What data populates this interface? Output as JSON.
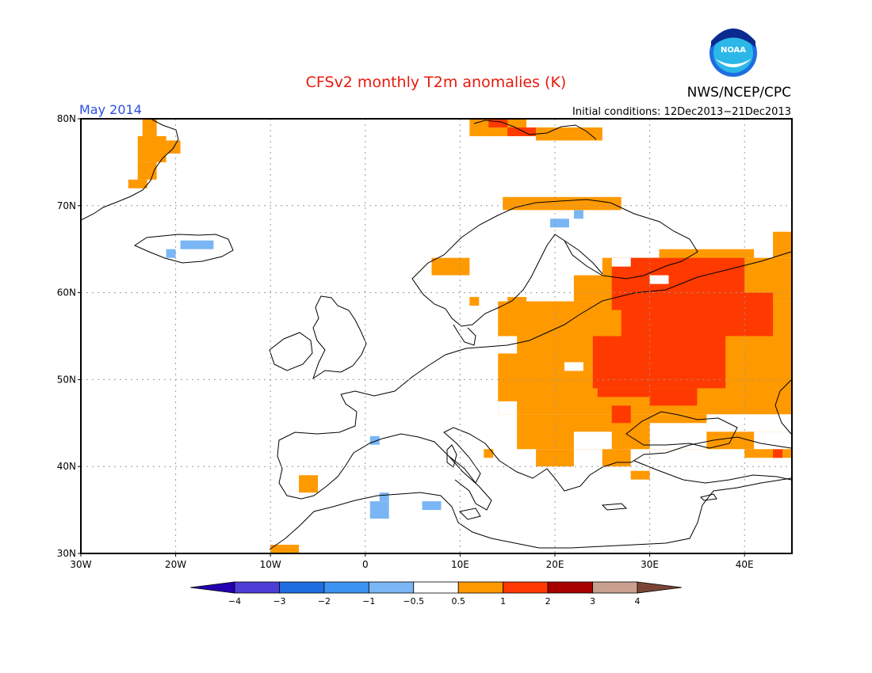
{
  "title": "CFSv2 monthly T2m anomalies (K)",
  "month": "May 2014",
  "agency": "NWS/NCEP/CPC",
  "logo_text": "NOAA",
  "initial_conditions": "Initial conditions: 12Dec2013−21Dec2013",
  "colors": {
    "title": "#e8190c",
    "month": "#2b4fe0",
    "frame": "#000000",
    "grid": "#999999",
    "coast": "#000000"
  },
  "x_axis": {
    "range_deg": [
      -30,
      45
    ],
    "ticks": [
      {
        "deg": -30,
        "label": "30W"
      },
      {
        "deg": -20,
        "label": "20W"
      },
      {
        "deg": -10,
        "label": "10W"
      },
      {
        "deg": 0,
        "label": "0"
      },
      {
        "deg": 10,
        "label": "10E"
      },
      {
        "deg": 20,
        "label": "20E"
      },
      {
        "deg": 30,
        "label": "30E"
      },
      {
        "deg": 40,
        "label": "40E"
      }
    ]
  },
  "y_axis": {
    "range_deg": [
      30,
      80
    ],
    "ticks": [
      {
        "deg": 80,
        "label": "80N"
      },
      {
        "deg": 70,
        "label": "70N"
      },
      {
        "deg": 60,
        "label": "60N"
      },
      {
        "deg": 50,
        "label": "50N"
      },
      {
        "deg": 40,
        "label": "40N"
      },
      {
        "deg": 30,
        "label": "30N"
      }
    ]
  },
  "colorbar": {
    "bins": [
      "#2400b0",
      "#4d3fd6",
      "#1f6ee0",
      "#3d94f0",
      "#7ab6f5",
      "#ffffff",
      "#ff9900",
      "#ff3a00",
      "#a80000",
      "#c9a090",
      "#7a4535"
    ],
    "labels": [
      "−4",
      "−3",
      "−2",
      "−1",
      "−0.5",
      "0.5",
      "1",
      "2",
      "3",
      "4"
    ]
  },
  "anomaly_cells": [
    {
      "lon": [
        -23.5,
        -22
      ],
      "lat": [
        78,
        80
      ],
      "color": "#ff9900"
    },
    {
      "lon": [
        -24,
        -21
      ],
      "lat": [
        75,
        78
      ],
      "color": "#ff9900"
    },
    {
      "lon": [
        -24,
        -22
      ],
      "lat": [
        73,
        75
      ],
      "color": "#ff9900"
    },
    {
      "lon": [
        -22,
        -19.5
      ],
      "lat": [
        76,
        77.5
      ],
      "color": "#ff9900"
    },
    {
      "lon": [
        -25,
        -23
      ],
      "lat": [
        72,
        73
      ],
      "color": "#ff9900"
    },
    {
      "lon": [
        -19.5,
        -16
      ],
      "lat": [
        65,
        66
      ],
      "color": "#7ab6f5"
    },
    {
      "lon": [
        -21,
        -20
      ],
      "lat": [
        64,
        65
      ],
      "color": "#7ab6f5"
    },
    {
      "lon": [
        19.5,
        21.5
      ],
      "lat": [
        67.5,
        68.5
      ],
      "color": "#7ab6f5"
    },
    {
      "lon": [
        22,
        23
      ],
      "lat": [
        68.5,
        69.5
      ],
      "color": "#7ab6f5"
    },
    {
      "lon": 0.5,
      "lon2": 1.5,
      "lat": [
        42.5,
        43.5
      ],
      "color": "#7ab6f5"
    },
    {
      "lon": [
        0.5,
        2.5
      ],
      "lat": [
        34,
        36
      ],
      "color": "#7ab6f5"
    },
    {
      "lon": [
        1.5,
        2.5
      ],
      "lat": [
        36,
        37
      ],
      "color": "#7ab6f5"
    },
    {
      "lon": [
        6,
        8
      ],
      "lat": [
        35,
        36
      ],
      "color": "#7ab6f5"
    },
    {
      "lon": [
        11,
        17
      ],
      "lat": [
        78,
        80
      ],
      "color": "#ff9900"
    },
    {
      "lon": [
        13,
        15
      ],
      "lat": [
        79,
        80
      ],
      "color": "#ff3a00"
    },
    {
      "lon": [
        15,
        18
      ],
      "lat": [
        78,
        79
      ],
      "color": "#ff3a00"
    },
    {
      "lon": [
        18,
        25
      ],
      "lat": [
        77.5,
        79
      ],
      "color": "#ff9900"
    },
    {
      "lon": [
        14.5,
        27
      ],
      "lat": [
        69.5,
        71
      ],
      "color": "#ff9900"
    },
    {
      "lon": [
        7,
        11
      ],
      "lat": [
        62,
        64
      ],
      "color": "#ff9900"
    },
    {
      "lon": [
        11,
        12
      ],
      "lat": [
        58.5,
        59.5
      ],
      "color": "#ff9900"
    },
    {
      "lon": [
        15,
        17
      ],
      "lat": [
        58.5,
        59.5
      ],
      "color": "#ff9900"
    },
    {
      "lon": [
        14.5,
        15
      ],
      "lat": [
        57.5,
        58.5
      ],
      "color": "#ff9900"
    },
    {
      "lon": [
        22,
        27
      ],
      "lat": [
        59,
        62
      ],
      "color": "#ff9900"
    },
    {
      "lon": [
        25,
        45
      ],
      "lat": [
        59,
        64
      ],
      "color": "#ff9900"
    },
    {
      "lon": [
        31,
        41
      ],
      "lat": [
        64,
        65
      ],
      "color": "#ff9900"
    },
    {
      "lon": [
        43,
        45
      ],
      "lat": [
        64,
        67
      ],
      "color": "#ff9900"
    },
    {
      "lon": [
        14,
        45
      ],
      "lat": [
        46,
        59
      ],
      "color": "#ff9900"
    },
    {
      "lon": [
        16,
        45
      ],
      "lat": [
        42,
        46
      ],
      "color": "#ff9900"
    },
    {
      "lon": [
        18,
        22
      ],
      "lat": [
        40,
        42
      ],
      "color": "#ff9900"
    },
    {
      "lon": [
        25,
        28
      ],
      "lat": [
        40,
        42
      ],
      "color": "#ff9900"
    },
    {
      "lon": [
        12.5,
        13.5
      ],
      "lat": [
        41,
        42
      ],
      "color": "#ff9900"
    },
    {
      "lon": [
        28,
        30
      ],
      "lat": [
        38.5,
        39.5
      ],
      "color": "#ff9900"
    },
    {
      "lon": [
        37,
        40
      ],
      "lat": [
        43,
        44
      ],
      "color": "#ff9900"
    },
    {
      "lon": [
        40,
        45
      ],
      "lat": [
        41,
        42
      ],
      "color": "#ff9900"
    },
    {
      "lon": [
        -7,
        -5
      ],
      "lat": [
        37,
        39
      ],
      "color": "#ff9900"
    },
    {
      "lon": [
        -10,
        -7
      ],
      "lat": [
        30,
        31
      ],
      "color": "#ff9900"
    },
    {
      "lon": [
        26,
        40
      ],
      "lat": [
        58,
        64
      ],
      "color": "#ff3a00"
    },
    {
      "lon": [
        27,
        43
      ],
      "lat": [
        55,
        60
      ],
      "color": "#ff3a00"
    },
    {
      "lon": [
        24,
        38
      ],
      "lat": [
        49,
        55
      ],
      "color": "#ff3a00"
    },
    {
      "lon": [
        24.5,
        30
      ],
      "lat": [
        48,
        49
      ],
      "color": "#ff3a00"
    },
    {
      "lon": [
        30,
        35
      ],
      "lat": [
        47,
        49
      ],
      "color": "#ff3a00"
    },
    {
      "lon": [
        38,
        43
      ],
      "lat": [
        56,
        58
      ],
      "color": "#ff3a00"
    },
    {
      "lon": [
        26,
        28
      ],
      "lat": [
        45,
        47
      ],
      "color": "#ff3a00"
    },
    {
      "lon": [
        43,
        44
      ],
      "lat": [
        41,
        42
      ],
      "color": "#ff3a00"
    },
    {
      "lon": [
        36,
        45
      ],
      "lat": [
        44,
        46
      ],
      "color": "#ffffff"
    },
    {
      "lon": [
        30,
        36
      ],
      "lat": [
        42,
        45
      ],
      "color": "#ffffff"
    },
    {
      "lon": [
        22,
        26
      ],
      "lat": [
        42,
        44
      ],
      "color": "#ffffff"
    },
    {
      "lon": [
        41,
        45
      ],
      "lat": [
        42,
        44
      ],
      "color": "#ffffff"
    },
    {
      "lon": [
        21,
        23
      ],
      "lat": [
        51,
        52
      ],
      "color": "#ffffff"
    },
    {
      "lon": [
        14,
        16
      ],
      "lat": [
        46,
        47.5
      ],
      "color": "#ffffff"
    },
    {
      "lon": [
        14,
        16
      ],
      "lat": [
        53,
        55
      ],
      "color": "#ffffff"
    },
    {
      "lon": [
        30,
        32
      ],
      "lat": [
        61,
        62
      ],
      "color": "#ffffff"
    },
    {
      "lon": [
        26,
        28
      ],
      "lat": [
        63,
        64
      ],
      "color": "#ffffff"
    }
  ]
}
